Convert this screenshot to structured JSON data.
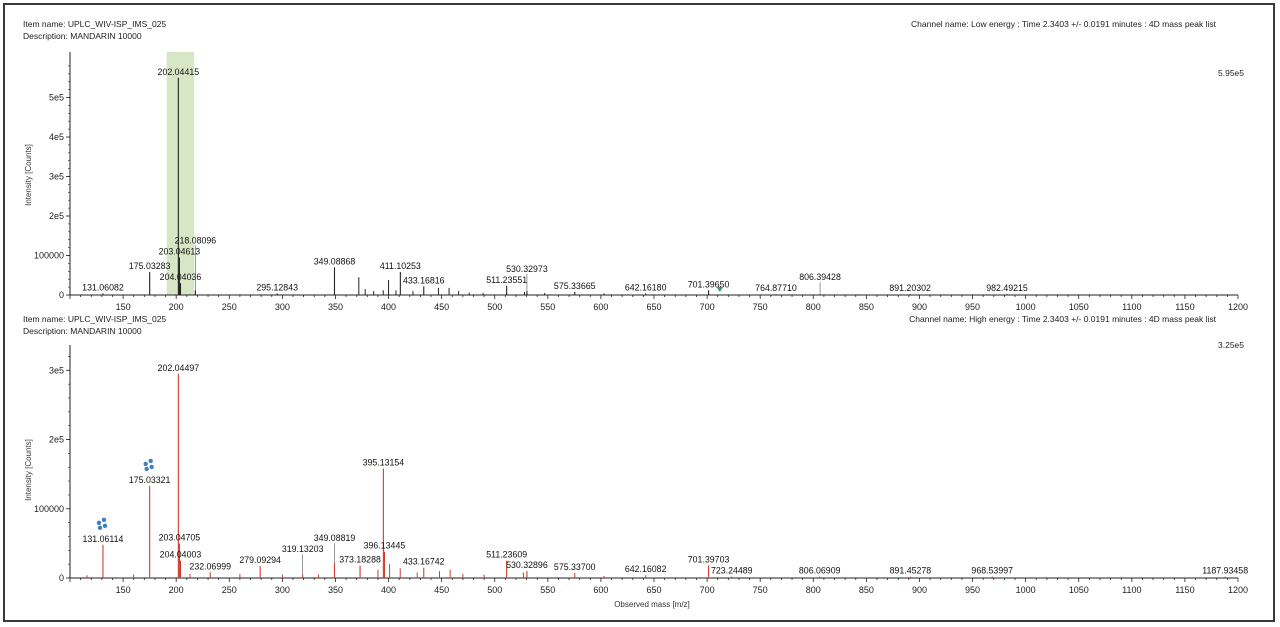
{
  "chart_data": [
    {
      "type": "bar",
      "header": {
        "item_name": "Item name: UPLC_WIV-ISP_IMS_025",
        "description": "Description: MANDARIN 10000",
        "channel": "Channel name: Low energy : Time 2.3403 +/- 0.0191 minutes : 4D mass peak list"
      },
      "scale_label": "5.95e5",
      "ylabel": "Intensity [Counts]",
      "xlabel": "",
      "xlim": [
        100,
        1200
      ],
      "ylim": [
        0,
        595000
      ],
      "color": "#222222",
      "highlight": {
        "range": [
          191,
          217
        ],
        "color": "#d7e7c6"
      },
      "marker": {
        "x": 712,
        "color": "#3aa36b"
      },
      "xticks": [
        "150",
        "200",
        "250",
        "300",
        "350",
        "400",
        "450",
        "500",
        "550",
        "600",
        "650",
        "700",
        "750",
        "800",
        "850",
        "900",
        "950",
        "1000",
        "1050",
        "1100",
        "1150",
        "1200"
      ],
      "yticks": [
        {
          "value": 0,
          "label": "0"
        },
        {
          "value": 100000,
          "label": "100000"
        },
        {
          "value": 200000,
          "label": "2e5"
        },
        {
          "value": 300000,
          "label": "3e5"
        },
        {
          "value": 400000,
          "label": "4e5"
        },
        {
          "value": 500000,
          "label": "5e5"
        }
      ],
      "labeled_peaks": [
        {
          "mz": 131.06082,
          "intensity": 4000,
          "label": "131.06082"
        },
        {
          "mz": 175.03283,
          "intensity": 58000,
          "label": "175.03283"
        },
        {
          "mz": 202.04415,
          "intensity": 550000,
          "label": "202.04415"
        },
        {
          "mz": 203.04613,
          "intensity": 95000,
          "label": "203.04613"
        },
        {
          "mz": 204.04036,
          "intensity": 30000,
          "label": "204.04036"
        },
        {
          "mz": 218.08096,
          "intensity": 12000,
          "label": "218.08096"
        },
        {
          "mz": 295.12843,
          "intensity": 4000,
          "label": "295.12843"
        },
        {
          "mz": 349.08868,
          "intensity": 70000,
          "label": "349.08868"
        },
        {
          "mz": 411.10253,
          "intensity": 58000,
          "label": "411.10253"
        },
        {
          "mz": 433.16816,
          "intensity": 22000,
          "label": "433.16816"
        },
        {
          "mz": 511.23551,
          "intensity": 23000,
          "label": "511.23551"
        },
        {
          "mz": 530.32973,
          "intensity": 10000,
          "label": "530.32973"
        },
        {
          "mz": 575.33665,
          "intensity": 8000,
          "label": "575.33665"
        },
        {
          "mz": 642.1618,
          "intensity": 4000,
          "label": "642.16180"
        },
        {
          "mz": 701.3965,
          "intensity": 12000,
          "label": "701.39650"
        },
        {
          "mz": 764.8771,
          "intensity": 2000,
          "label": "764.87710"
        },
        {
          "mz": 806.39428,
          "intensity": 2000,
          "label": "806.39428"
        },
        {
          "mz": 891.20302,
          "intensity": 2000,
          "label": "891.20302"
        },
        {
          "mz": 982.49215,
          "intensity": 2000,
          "label": "982.49215"
        }
      ],
      "minor_peaks": [
        {
          "mz": 372,
          "intensity": 45000
        },
        {
          "mz": 378,
          "intensity": 15000
        },
        {
          "mz": 386,
          "intensity": 10000
        },
        {
          "mz": 395,
          "intensity": 12000
        },
        {
          "mz": 400,
          "intensity": 38000
        },
        {
          "mz": 407,
          "intensity": 12000
        },
        {
          "mz": 423,
          "intensity": 10000
        },
        {
          "mz": 447,
          "intensity": 18000
        },
        {
          "mz": 457,
          "intensity": 18000
        },
        {
          "mz": 466,
          "intensity": 10000
        },
        {
          "mz": 476,
          "intensity": 6000
        },
        {
          "mz": 489,
          "intensity": 5000
        },
        {
          "mz": 528,
          "intensity": 8000
        },
        {
          "mz": 547,
          "intensity": 5000
        },
        {
          "mz": 603,
          "intensity": 4000
        }
      ]
    },
    {
      "type": "bar",
      "header": {
        "item_name": "Item name: UPLC_WIV-ISP_IMS_025",
        "description": "Description: MANDARIN 10000",
        "channel": "Channel name: High energy : Time 2.3403 +/- 0.0191 minutes : 4D mass peak list"
      },
      "scale_label": "3.25e5",
      "ylabel": "Intensity [Counts]",
      "xlabel": "Observed mass [m/z]",
      "xlim": [
        100,
        1200
      ],
      "ylim": [
        0,
        325000
      ],
      "color": "#d23c2c",
      "icon_color": "#3d7fc4",
      "fragment_icons": [
        {
          "mz": 131.06114,
          "name": "fragment-structure-icon-131"
        },
        {
          "mz": 175.03321,
          "name": "fragment-structure-icon-175"
        }
      ],
      "xticks": [
        "150",
        "200",
        "250",
        "300",
        "350",
        "400",
        "450",
        "500",
        "550",
        "600",
        "650",
        "700",
        "750",
        "800",
        "850",
        "900",
        "950",
        "1000",
        "1050",
        "1100",
        "1150",
        "1200"
      ],
      "yticks": [
        {
          "value": 0,
          "label": "0"
        },
        {
          "value": 100000,
          "label": "100000"
        },
        {
          "value": 200000,
          "label": "2e5"
        },
        {
          "value": 300000,
          "label": "3e5"
        }
      ],
      "labeled_peaks": [
        {
          "mz": 131.06114,
          "intensity": 48000,
          "label": "131.06114"
        },
        {
          "mz": 175.03321,
          "intensity": 133000,
          "label": "175.03321"
        },
        {
          "mz": 202.04497,
          "intensity": 295000,
          "label": "202.04497"
        },
        {
          "mz": 203.04705,
          "intensity": 50000,
          "label": "203.04705"
        },
        {
          "mz": 204.04003,
          "intensity": 25000,
          "label": "204.04003"
        },
        {
          "mz": 232.06999,
          "intensity": 8000,
          "label": "232.06999"
        },
        {
          "mz": 279.09294,
          "intensity": 17000,
          "label": "279.09294"
        },
        {
          "mz": 319.13203,
          "intensity": 5000,
          "label": "319.13203"
        },
        {
          "mz": 349.08819,
          "intensity": 22000,
          "label": "349.08819"
        },
        {
          "mz": 373.18288,
          "intensity": 18000,
          "label": "373.18288"
        },
        {
          "mz": 395.13154,
          "intensity": 158000,
          "label": "395.13154"
        },
        {
          "mz": 396.13445,
          "intensity": 38000,
          "label": "396.13445"
        },
        {
          "mz": 433.16742,
          "intensity": 15000,
          "label": "433.16742"
        },
        {
          "mz": 511.23609,
          "intensity": 25000,
          "label": "511.23609"
        },
        {
          "mz": 530.32896,
          "intensity": 10000,
          "label": "530.32896"
        },
        {
          "mz": 575.337,
          "intensity": 7000,
          "label": "575.33700"
        },
        {
          "mz": 642.16082,
          "intensity": 4000,
          "label": "642.16082"
        },
        {
          "mz": 701.39703,
          "intensity": 18000,
          "label": "701.39703"
        },
        {
          "mz": 723.24489,
          "intensity": 2000,
          "label": "723.24489"
        },
        {
          "mz": 806.06909,
          "intensity": 2000,
          "label": "806.06909"
        },
        {
          "mz": 891.45278,
          "intensity": 2000,
          "label": "891.45278"
        },
        {
          "mz": 968.53997,
          "intensity": 2000,
          "label": "968.53997"
        },
        {
          "mz": 1187.93458,
          "intensity": 2000,
          "label": "1187.93458"
        }
      ],
      "minor_peaks": [
        {
          "mz": 116,
          "intensity": 4000
        },
        {
          "mz": 160,
          "intensity": 5000
        },
        {
          "mz": 213,
          "intensity": 6000
        },
        {
          "mz": 260,
          "intensity": 6000
        },
        {
          "mz": 300,
          "intensity": 5000
        },
        {
          "mz": 334,
          "intensity": 5000
        },
        {
          "mz": 390,
          "intensity": 12000
        },
        {
          "mz": 401,
          "intensity": 20000
        },
        {
          "mz": 411,
          "intensity": 14000
        },
        {
          "mz": 427,
          "intensity": 8000
        },
        {
          "mz": 448,
          "intensity": 10000
        },
        {
          "mz": 458,
          "intensity": 12000
        },
        {
          "mz": 470,
          "intensity": 6000
        },
        {
          "mz": 490,
          "intensity": 5000
        },
        {
          "mz": 527,
          "intensity": 8000
        },
        {
          "mz": 603,
          "intensity": 3000
        }
      ]
    }
  ]
}
